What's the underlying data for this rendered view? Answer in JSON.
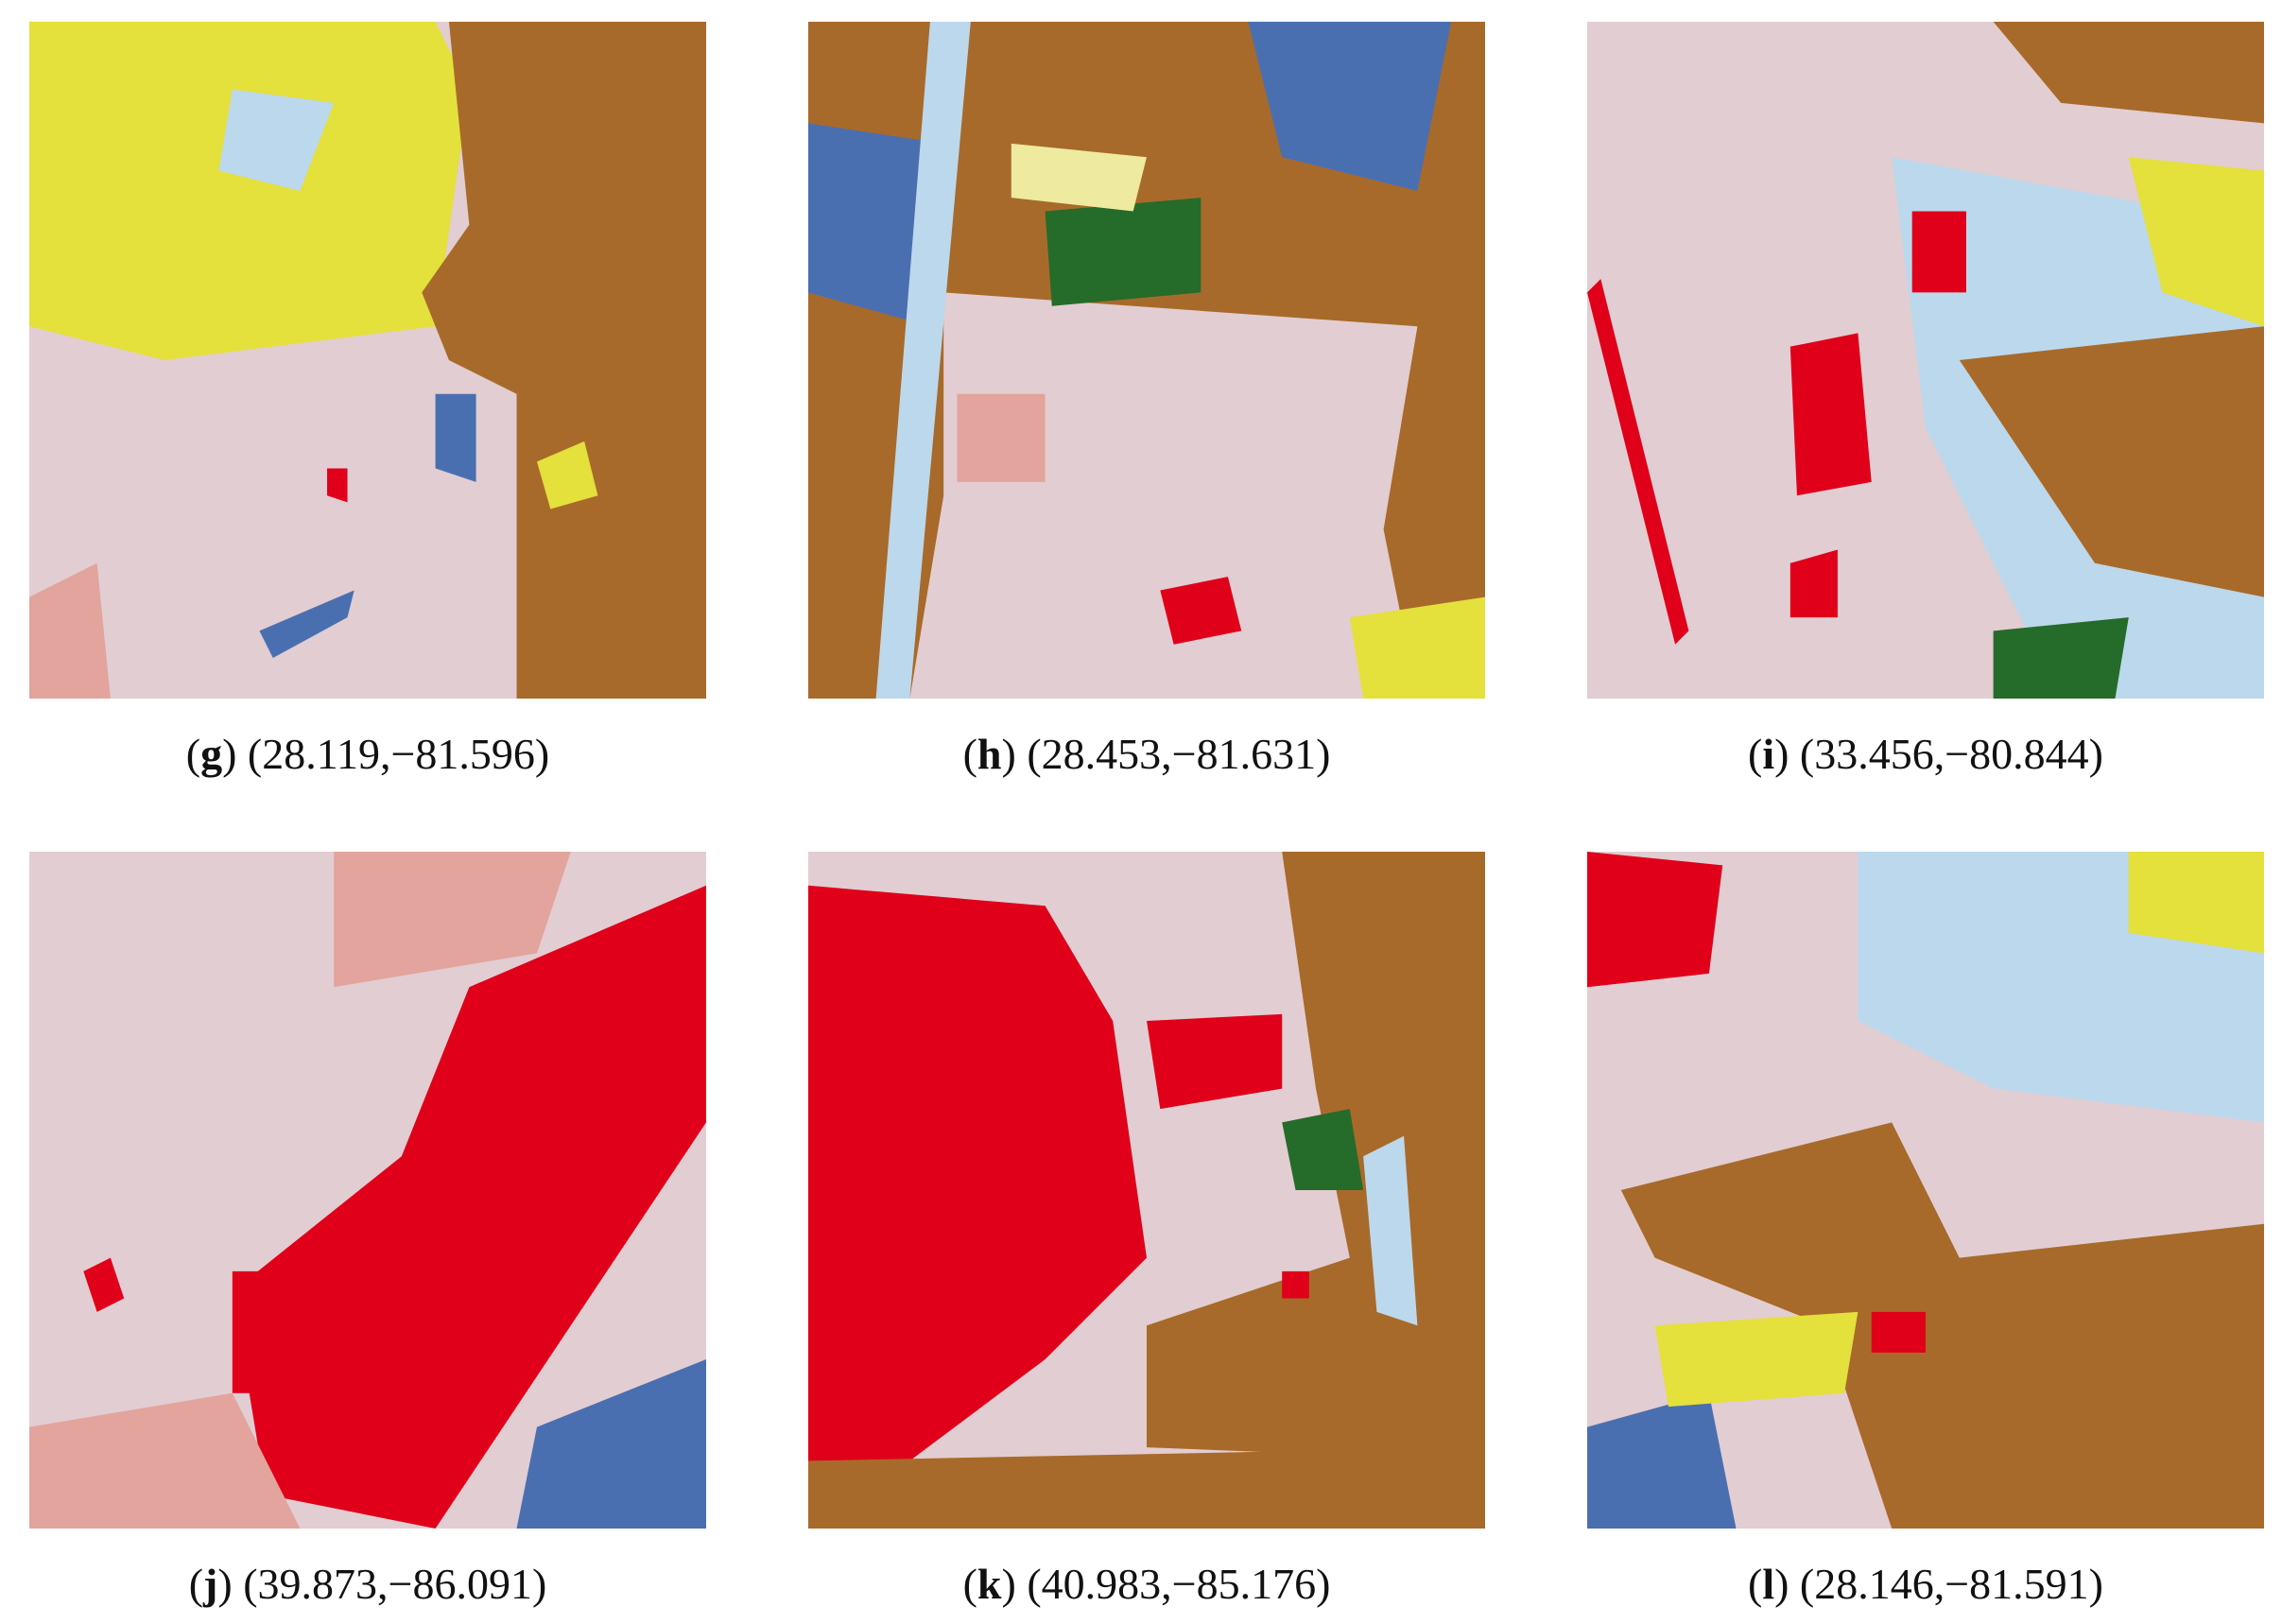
{
  "panels": [
    {
      "caption": [
        "(",
        "g",
        ") (28.119,−81.596)"
      ]
    },
    {
      "caption": [
        "(",
        "h",
        ") (28.453,−81.631)"
      ]
    },
    {
      "caption": [
        "(",
        "i",
        ") (33.456,−80.844)"
      ]
    },
    {
      "caption": [
        "(",
        "j",
        ") (39.873,−86.091)"
      ]
    },
    {
      "caption": [
        "(",
        "k",
        ") (40.983,−85.176)"
      ]
    },
    {
      "caption": [
        "(",
        "l",
        ") (28.146,−81.591)"
      ]
    }
  ]
}
